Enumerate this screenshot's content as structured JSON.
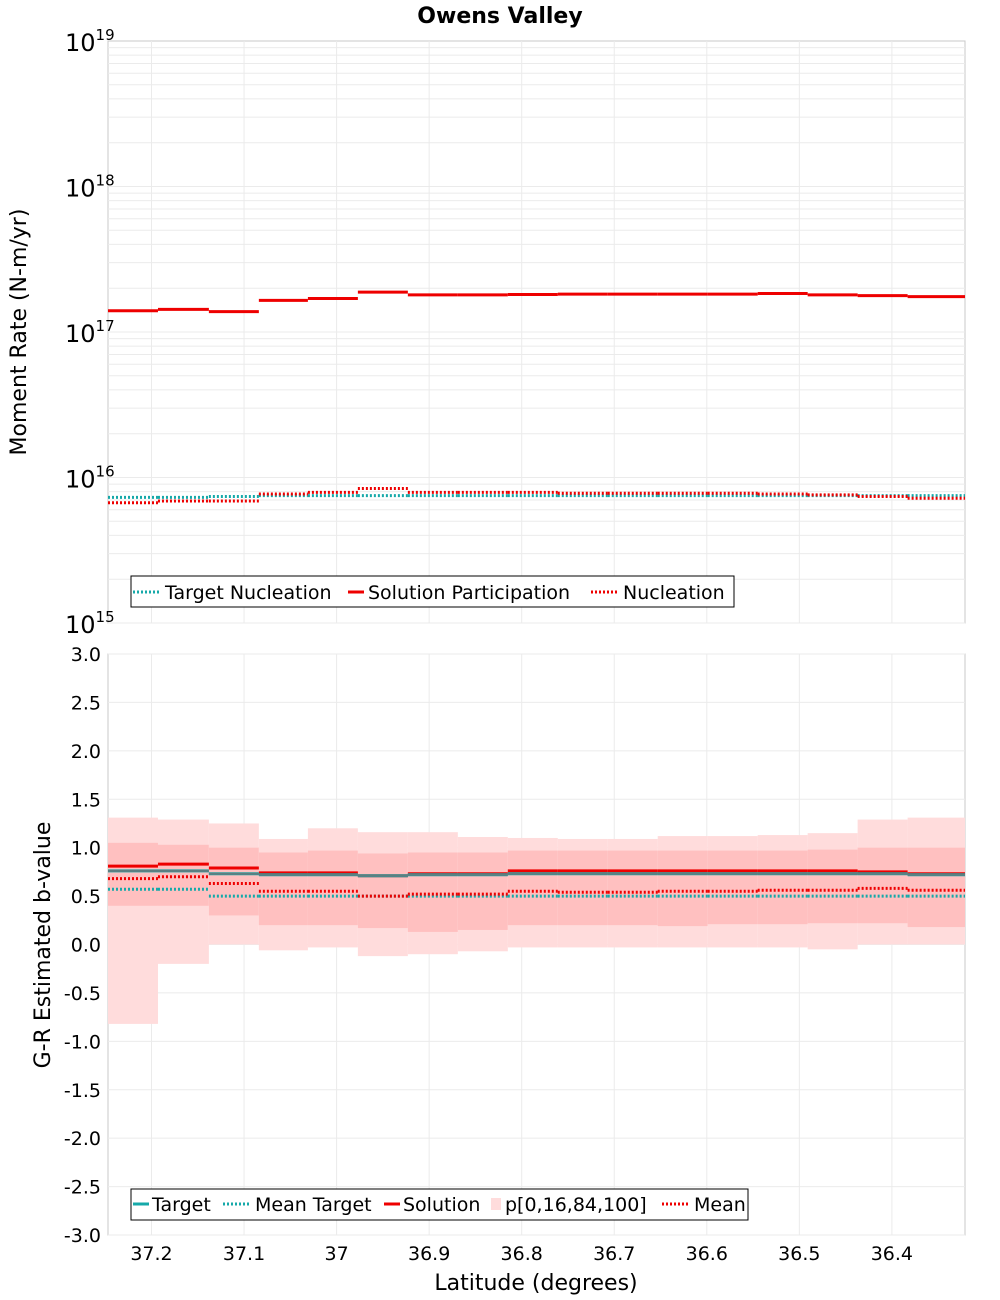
{
  "title": "Owens Valley",
  "colors": {
    "teal": "#16a9a9",
    "red": "#ee0000",
    "band_outer": "#ffdcdc",
    "band_inner": "#ffc0c0",
    "grid": "#ebebeb"
  },
  "chart_data": [
    {
      "type": "line",
      "scale": "log",
      "title": "Owens Valley",
      "ylabel": "Moment Rate (N-m/yr)",
      "ylim": [
        1000000000000000.0,
        1e+19
      ],
      "y_ticks": [
        {
          "base": "10",
          "exp": "15",
          "value": 1000000000000000.0
        },
        {
          "base": "10",
          "exp": "16",
          "value": 1e+16
        },
        {
          "base": "10",
          "exp": "17",
          "value": 1e+17
        },
        {
          "base": "10",
          "exp": "18",
          "value": 1e+18
        },
        {
          "base": "10",
          "exp": "19",
          "value": 1e+19
        }
      ],
      "xlim": [
        37.247,
        36.321
      ],
      "x_edges": [
        37.247,
        37.193,
        37.138,
        37.084,
        37.031,
        36.977,
        36.923,
        36.869,
        36.815,
        36.761,
        36.707,
        36.653,
        36.599,
        36.545,
        36.491,
        36.437,
        36.383,
        36.321
      ],
      "series": [
        {
          "name": "Target Nucleation",
          "style": "dotted",
          "color": "#16a9a9",
          "values": [
            7300000000000000.0,
            7300000000000000.0,
            7400000000000000.0,
            7500000000000000.0,
            7500000000000000.0,
            7500000000000000.0,
            7500000000000000.0,
            7500000000000000.0,
            7500000000000000.0,
            7500000000000000.0,
            7500000000000000.0,
            7500000000000000.0,
            7500000000000000.0,
            7500000000000000.0,
            7500000000000000.0,
            7500000000000000.0,
            7500000000000000.0
          ]
        },
        {
          "name": "Solution Participation",
          "style": "solid",
          "color": "#ee0000",
          "values": [
            1.4e+17,
            1.43e+17,
            1.38e+17,
            1.65e+17,
            1.7e+17,
            1.88e+17,
            1.8e+17,
            1.8e+17,
            1.81e+17,
            1.82e+17,
            1.82e+17,
            1.82e+17,
            1.82e+17,
            1.84e+17,
            1.8e+17,
            1.78e+17,
            1.75e+17
          ]
        },
        {
          "name": "Nucleation",
          "style": "dotted",
          "color": "#ee0000",
          "values": [
            6700000000000000.0,
            6900000000000000.0,
            6900000000000000.0,
            7700000000000000.0,
            7900000000000000.0,
            8400000000000000.0,
            7900000000000000.0,
            7900000000000000.0,
            7900000000000000.0,
            7800000000000000.0,
            7800000000000000.0,
            7800000000000000.0,
            7800000000000000.0,
            7700000000000000.0,
            7600000000000000.0,
            7400000000000000.0,
            7200000000000000.0
          ]
        }
      ],
      "legend": {
        "placement": "bottom-left",
        "items": [
          "Target Nucleation",
          "Solution Participation",
          "Nucleation"
        ]
      }
    },
    {
      "type": "line",
      "ylabel": "G-R Estimated b-value",
      "xlabel": "Latitude (degrees)",
      "ylim": [
        -3.0,
        3.0
      ],
      "y_ticks": [
        "3.0",
        "2.5",
        "2.0",
        "1.5",
        "1.0",
        "0.5",
        "0.0",
        "-0.5",
        "-1.0",
        "-1.5",
        "-2.0",
        "-2.5",
        "-3.0"
      ],
      "x_ticks": [
        "37.2",
        "37.1",
        "37",
        "36.9",
        "36.8",
        "36.7",
        "36.6",
        "36.5",
        "36.4"
      ],
      "xlim": [
        37.247,
        36.321
      ],
      "x_edges": [
        37.247,
        37.193,
        37.138,
        37.084,
        37.031,
        36.977,
        36.923,
        36.869,
        36.815,
        36.761,
        36.707,
        36.653,
        36.599,
        36.545,
        36.491,
        36.437,
        36.383,
        36.321
      ],
      "series": [
        {
          "name": "Target",
          "style": "solid",
          "color": "#16a9a9",
          "values": [
            0.76,
            0.76,
            0.73,
            0.72,
            0.72,
            0.71,
            0.72,
            0.72,
            0.73,
            0.73,
            0.73,
            0.73,
            0.73,
            0.73,
            0.73,
            0.73,
            0.72
          ]
        },
        {
          "name": "Mean Target",
          "style": "dotted",
          "color": "#16a9a9",
          "values": [
            0.57,
            0.57,
            0.5,
            0.5,
            0.5,
            0.5,
            0.5,
            0.5,
            0.5,
            0.5,
            0.5,
            0.5,
            0.5,
            0.5,
            0.5,
            0.5,
            0.5
          ]
        },
        {
          "name": "Solution",
          "style": "solid",
          "color": "#ee0000",
          "values": [
            0.81,
            0.83,
            0.79,
            0.74,
            0.74,
            0.71,
            0.73,
            0.73,
            0.76,
            0.76,
            0.76,
            0.76,
            0.76,
            0.76,
            0.76,
            0.75,
            0.73
          ]
        },
        {
          "name": "Mean",
          "style": "dotted",
          "color": "#ee0000",
          "values": [
            0.68,
            0.7,
            0.63,
            0.55,
            0.55,
            0.5,
            0.52,
            0.52,
            0.55,
            0.54,
            0.54,
            0.55,
            0.55,
            0.56,
            0.56,
            0.58,
            0.56
          ]
        }
      ],
      "band": {
        "name": "p[0,16,84,100]",
        "p0": [
          -0.82,
          -0.2,
          0.0,
          -0.06,
          -0.03,
          -0.12,
          -0.1,
          -0.07,
          -0.03,
          -0.03,
          -0.03,
          -0.03,
          -0.03,
          -0.03,
          -0.05,
          0.0,
          0.0
        ],
        "p16": [
          0.4,
          0.4,
          0.3,
          0.2,
          0.2,
          0.17,
          0.13,
          0.15,
          0.2,
          0.2,
          0.2,
          0.19,
          0.21,
          0.21,
          0.22,
          0.22,
          0.18
        ],
        "p84": [
          1.05,
          1.03,
          1.0,
          0.95,
          0.97,
          0.94,
          0.95,
          0.95,
          0.97,
          0.97,
          0.97,
          0.97,
          0.97,
          0.97,
          0.98,
          1.0,
          1.0
        ],
        "p100": [
          1.31,
          1.29,
          1.25,
          1.09,
          1.2,
          1.16,
          1.16,
          1.11,
          1.1,
          1.09,
          1.09,
          1.12,
          1.12,
          1.13,
          1.15,
          1.29,
          1.31
        ]
      },
      "legend": {
        "placement": "bottom-left",
        "items": [
          "Target",
          "Mean Target",
          "Solution",
          "p[0,16,84,100]",
          "Mean"
        ]
      }
    }
  ]
}
